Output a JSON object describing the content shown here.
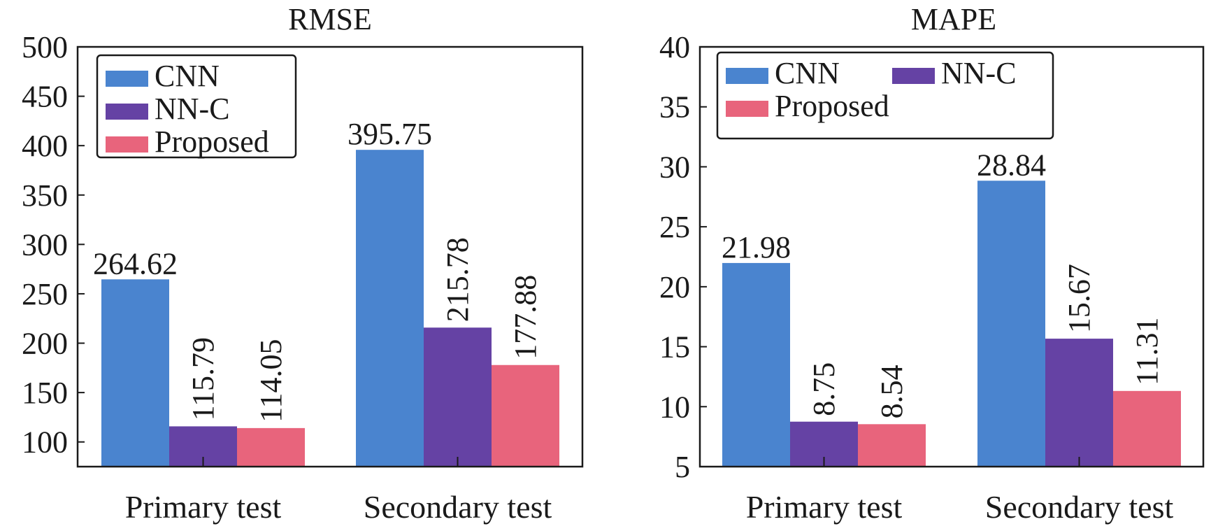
{
  "chart_data": [
    {
      "type": "bar",
      "title": "RMSE",
      "categories": [
        "Primary test",
        "Secondary test"
      ],
      "series": [
        {
          "name": "CNN",
          "color": "#4a84cf",
          "values": [
            264.62,
            395.75
          ]
        },
        {
          "name": "NN-C",
          "color": "#6542a4",
          "values": [
            115.79,
            215.78
          ]
        },
        {
          "name": "Proposed",
          "color": "#e8647c",
          "values": [
            114.05,
            177.88
          ]
        }
      ],
      "value_labels": [
        [
          "264.62",
          "395.75"
        ],
        [
          "115.79",
          "215.78"
        ],
        [
          "114.05",
          "177.88"
        ]
      ],
      "ylim": [
        75,
        500
      ],
      "yticks": [
        100,
        150,
        200,
        250,
        300,
        350,
        400,
        450,
        500
      ],
      "legend": "top-left, single column"
    },
    {
      "type": "bar",
      "title": "MAPE",
      "categories": [
        "Primary test",
        "Secondary test"
      ],
      "series": [
        {
          "name": "CNN",
          "color": "#4a84cf",
          "values": [
            21.98,
            28.84
          ]
        },
        {
          "name": "NN-C",
          "color": "#6542a4",
          "values": [
            8.75,
            15.67
          ]
        },
        {
          "name": "Proposed",
          "color": "#e8647c",
          "values": [
            8.54,
            11.31
          ]
        }
      ],
      "value_labels": [
        [
          "21.98",
          "28.84"
        ],
        [
          "8.75",
          "15.67"
        ],
        [
          "8.54",
          "11.31"
        ]
      ],
      "ylim": [
        5,
        40
      ],
      "yticks": [
        5,
        10,
        15,
        20,
        25,
        30,
        35,
        40
      ],
      "legend": "top-left, two columns"
    }
  ]
}
